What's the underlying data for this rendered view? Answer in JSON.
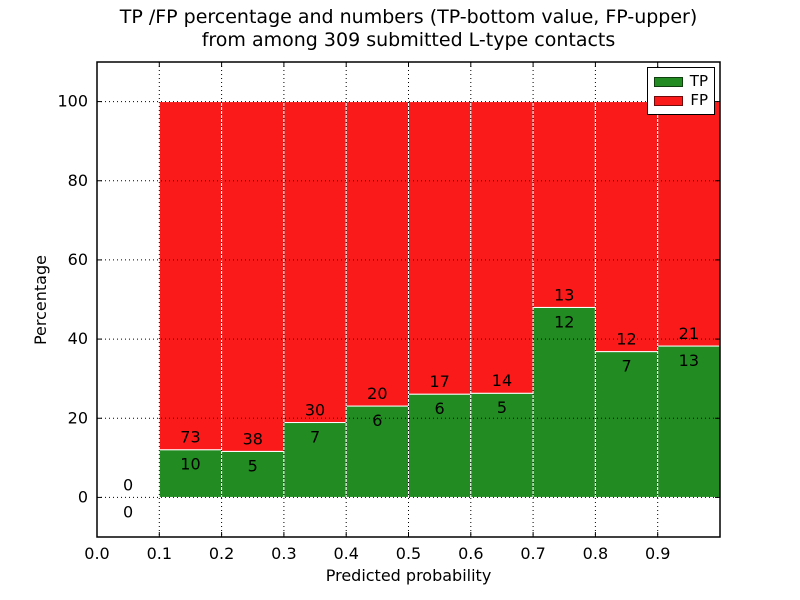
{
  "chart_data": {
    "type": "bar",
    "variant": "stacked-percentage",
    "title": "TP /FP percentage and numbers (TP-bottom value, FP-upper)\nfrom among 309 submitted L-type contacts",
    "title_lines": [
      "TP /FP percentage and numbers (TP-bottom value, FP-upper)",
      "from among 309 submitted L-type contacts"
    ],
    "xlabel": "Predicted probability",
    "ylabel": "Percentage",
    "total_contacts": 309,
    "xlim": [
      0.0,
      1.0
    ],
    "ylim": [
      -10,
      110
    ],
    "xticks": [
      0.0,
      0.1,
      0.2,
      0.3,
      0.4,
      0.5,
      0.6,
      0.7,
      0.8,
      0.9
    ],
    "xticklabels": [
      "0.0",
      "0.1",
      "0.2",
      "0.3",
      "0.4",
      "0.5",
      "0.6",
      "0.7",
      "0.8",
      "0.9"
    ],
    "yticks": [
      0,
      20,
      40,
      60,
      80,
      100
    ],
    "yticklabels": [
      "0",
      "20",
      "40",
      "60",
      "80",
      "100"
    ],
    "grid": {
      "visible": true,
      "style": "dotted",
      "color": "#000000"
    },
    "legend": {
      "position": "upper-right",
      "entries": [
        "TP",
        "FP"
      ]
    },
    "series": [
      {
        "name": "TP",
        "color": "#228b22"
      },
      {
        "name": "FP",
        "color": "#fa1a1a"
      }
    ],
    "bar_edge_color": "#ffffff",
    "bins": [
      {
        "x_range": [
          0.0,
          0.1
        ],
        "tp_count": 0,
        "fp_count": 0,
        "tp_percent": 0.0,
        "fp_percent": 0.0
      },
      {
        "x_range": [
          0.1,
          0.2
        ],
        "tp_count": 10,
        "fp_count": 73,
        "tp_percent": 12.05,
        "fp_percent": 87.95
      },
      {
        "x_range": [
          0.2,
          0.3
        ],
        "tp_count": 5,
        "fp_count": 38,
        "tp_percent": 11.63,
        "fp_percent": 88.37
      },
      {
        "x_range": [
          0.3,
          0.4
        ],
        "tp_count": 7,
        "fp_count": 30,
        "tp_percent": 18.92,
        "fp_percent": 81.08
      },
      {
        "x_range": [
          0.4,
          0.5
        ],
        "tp_count": 6,
        "fp_count": 20,
        "tp_percent": 23.08,
        "fp_percent": 76.92
      },
      {
        "x_range": [
          0.5,
          0.6
        ],
        "tp_count": 6,
        "fp_count": 17,
        "tp_percent": 26.09,
        "fp_percent": 73.91
      },
      {
        "x_range": [
          0.6,
          0.7
        ],
        "tp_count": 5,
        "fp_count": 14,
        "tp_percent": 26.32,
        "fp_percent": 73.68
      },
      {
        "x_range": [
          0.7,
          0.8
        ],
        "tp_count": 12,
        "fp_count": 13,
        "tp_percent": 48.0,
        "fp_percent": 52.0
      },
      {
        "x_range": [
          0.8,
          0.9
        ],
        "tp_count": 7,
        "fp_count": 12,
        "tp_percent": 36.84,
        "fp_percent": 63.16
      },
      {
        "x_range": [
          0.9,
          1.0
        ],
        "tp_count": 13,
        "fp_count": 21,
        "tp_percent": 38.24,
        "fp_percent": 61.76
      }
    ]
  }
}
